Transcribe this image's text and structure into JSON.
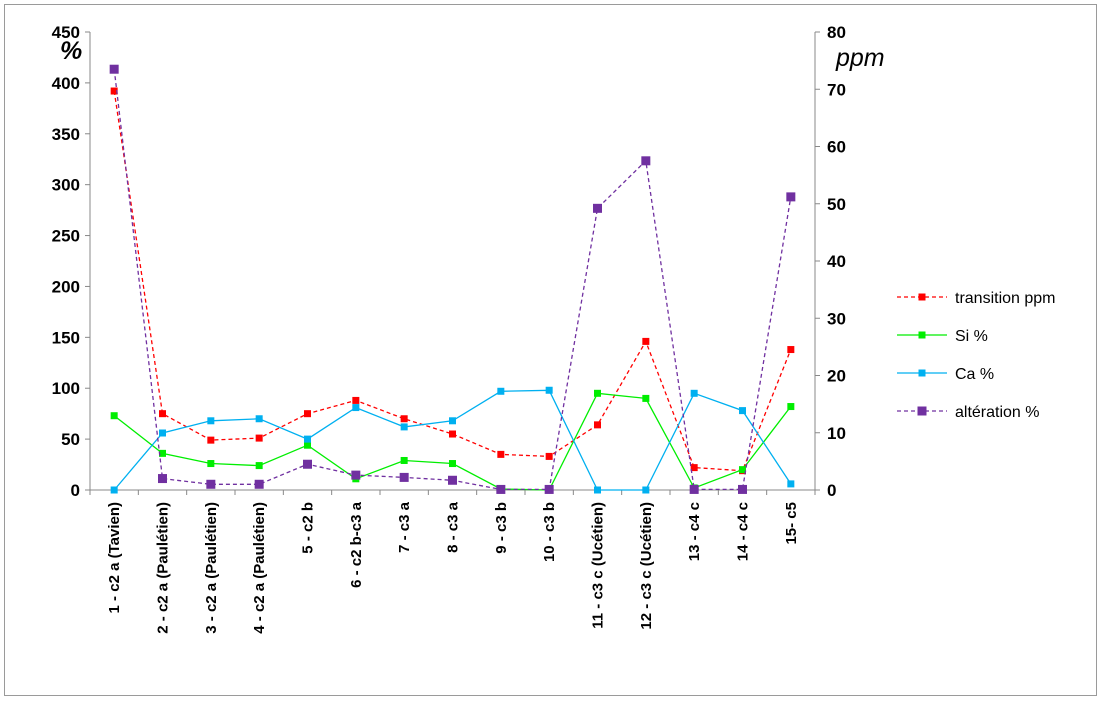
{
  "chart_data": {
    "type": "line",
    "y_left_unit": "%",
    "y_right_unit": "ppm",
    "y_left_ticks": [
      "0",
      "50",
      "100",
      "150",
      "200",
      "250",
      "300",
      "350",
      "400",
      "450"
    ],
    "y_right_ticks": [
      "0",
      "10",
      "20",
      "30",
      "40",
      "50",
      "60",
      "70",
      "80"
    ],
    "ylim_left": [
      0,
      450
    ],
    "ylim_right": [
      0,
      80
    ],
    "grid": false,
    "legend_position": "right",
    "categories": [
      "1 - c2 a (Tavien)",
      "2 - c2 a (Paulétien)",
      "3 - c2 a (Paulétien)",
      "4 - c2 a (Paulétien)",
      "5 - c2 b",
      "6 - c2 b-c3 a",
      "7 - c3 a",
      "8 - c3 a",
      "9 - c3 b",
      "10 - c3 b",
      "11 - c3 c (Ucétien)",
      "12 - c3 c (Ucétien)",
      "13 - c4 c",
      "14 - c4 c",
      "15- c5"
    ],
    "series": [
      {
        "name": "transition ppm",
        "axis": "left",
        "color": "#ff0000",
        "dashed": true,
        "values": [
          392,
          75,
          49,
          51,
          75,
          88,
          70,
          55,
          35,
          33,
          64,
          146,
          22,
          19,
          138
        ]
      },
      {
        "name": "Si %",
        "axis": "left",
        "color": "#00ee00",
        "dashed": false,
        "values": [
          73,
          36,
          26,
          24,
          44,
          11,
          29,
          26,
          1,
          0,
          95,
          90,
          2,
          20,
          82
        ]
      },
      {
        "name": "Ca %",
        "axis": "left",
        "color": "#00b0f0",
        "dashed": false,
        "values": [
          0,
          56,
          68,
          70,
          50,
          81,
          62,
          68,
          97,
          98,
          0,
          0,
          95,
          78,
          6
        ]
      },
      {
        "name": "altération %",
        "axis": "right",
        "color": "#7030a0",
        "dashed": true,
        "values": [
          73.5,
          2,
          1,
          1,
          4.5,
          2.6,
          2.2,
          1.7,
          0.1,
          0.1,
          49.2,
          57.5,
          0.1,
          0.1,
          51.2
        ]
      }
    ]
  }
}
